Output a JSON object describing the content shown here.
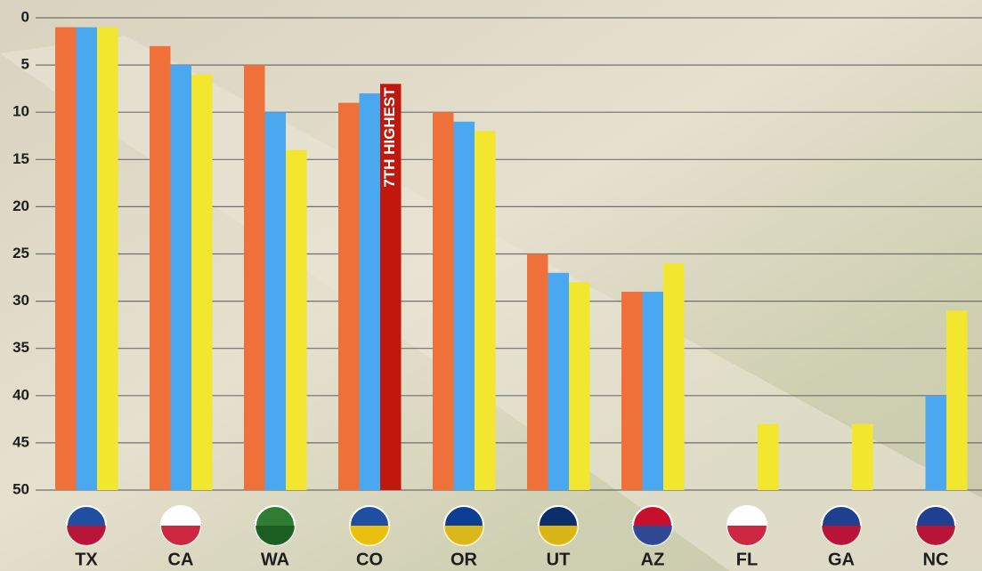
{
  "chart_data": {
    "type": "bar",
    "categories": [
      "TX",
      "CA",
      "WA",
      "CO",
      "OR",
      "UT",
      "AZ",
      "FL",
      "GA",
      "NC"
    ],
    "series": [
      {
        "color": "#f0703a",
        "values": [
          1,
          3,
          5,
          9,
          10,
          25,
          29,
          null,
          null,
          null
        ]
      },
      {
        "color": "#4aa8f0",
        "values": [
          1,
          5,
          10,
          8,
          11,
          27,
          29,
          null,
          null,
          40
        ]
      },
      {
        "color": "#f2e62e",
        "colors": [
          "#f2e62e",
          "#f2e62e",
          "#f2e62e",
          "#c0180c",
          "#f2e62e",
          "#f2e62e",
          "#f2e62e",
          "#f2e62e",
          "#f2e62e",
          "#f2e62e"
        ],
        "values": [
          1,
          6,
          14,
          7,
          12,
          28,
          26,
          43,
          43,
          31
        ],
        "value_labels": [
          null,
          null,
          null,
          "7TH HIGHEST",
          null,
          null,
          null,
          null,
          null,
          null
        ]
      }
    ],
    "ylim": [
      50,
      0
    ],
    "yticks": [
      0,
      5,
      10,
      15,
      20,
      25,
      30,
      35,
      40,
      45,
      50
    ],
    "grid": true
  }
}
